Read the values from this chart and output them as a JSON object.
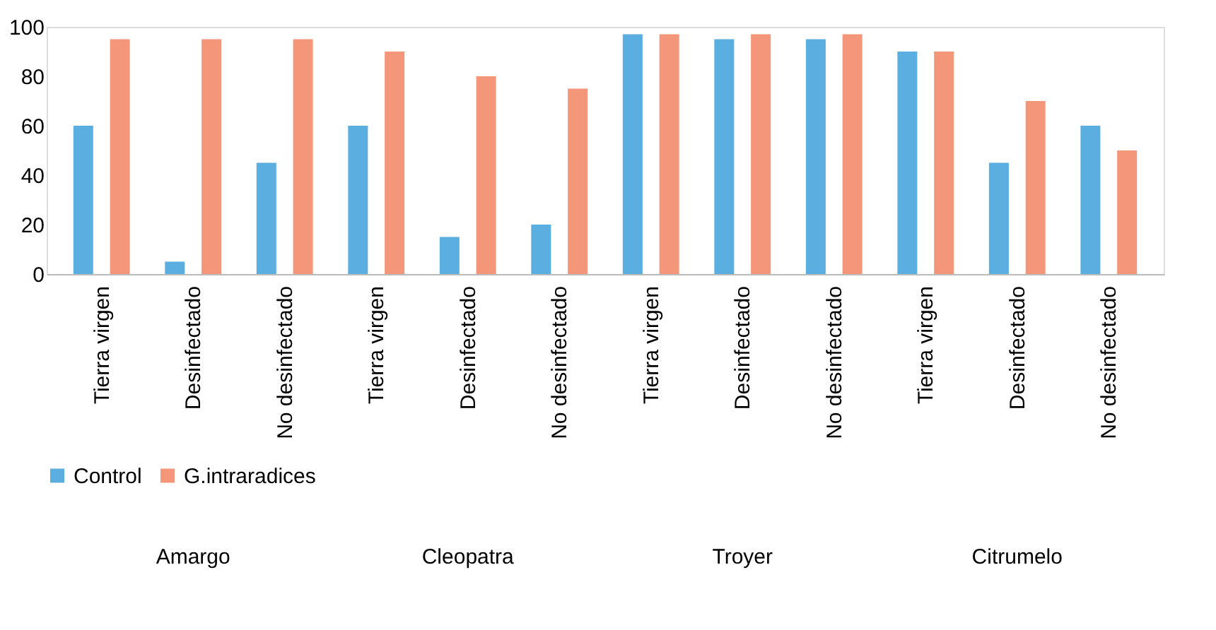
{
  "chart_data": {
    "type": "bar",
    "categories": [
      "Tierra virgen",
      "Desinfectado",
      "No desinfectado",
      "Tierra virgen",
      "Desinfectado",
      "No desinfectado",
      "Tierra virgen",
      "Desinfectado",
      "No desinfectado",
      "Tierra virgen",
      "Desinfectado",
      "No desinfectado"
    ],
    "series": [
      {
        "name": "Control",
        "color": "#5aaee0",
        "values": [
          60,
          5,
          45,
          60,
          15,
          20,
          97,
          95,
          95,
          90,
          45,
          60
        ]
      },
      {
        "name": "G.intraradices",
        "color": "#f4967a",
        "values": [
          95,
          95,
          95,
          90,
          80,
          75,
          97,
          97,
          97,
          90,
          70,
          50
        ]
      }
    ],
    "annotations": [
      "Amargo",
      "Cleopatra",
      "Troyer",
      "Citrumelo"
    ],
    "ylim": [
      0,
      100
    ],
    "yticks": [
      0,
      20,
      40,
      60,
      80,
      100
    ],
    "grid": false,
    "legend": "bottom"
  }
}
